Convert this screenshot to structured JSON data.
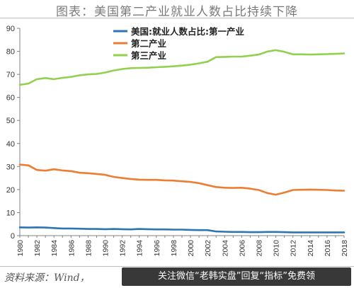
{
  "title": "图表：美国第二产业就业人数占比持续下降",
  "source": "资料来源：Wind，",
  "watermark": "关注微信“老韩实盘”回复“指标”免费领",
  "chart_data": {
    "type": "line",
    "title": "",
    "xlabel": "",
    "ylabel": "",
    "ylim": [
      0,
      90
    ],
    "yticks": [
      0,
      10,
      20,
      30,
      40,
      50,
      60,
      70,
      80,
      90
    ],
    "xlim": [
      1980,
      2018
    ],
    "xticks": [
      1980,
      1982,
      1984,
      1986,
      1988,
      1990,
      1992,
      1994,
      1996,
      1998,
      2000,
      2002,
      2004,
      2006,
      2008,
      2010,
      2012,
      2014,
      2016,
      2018
    ],
    "grid": false,
    "legend": "top-center",
    "x": [
      1980,
      1981,
      1982,
      1983,
      1984,
      1985,
      1986,
      1987,
      1988,
      1989,
      1990,
      1991,
      1992,
      1993,
      1994,
      1995,
      1996,
      1997,
      1998,
      1999,
      2000,
      2001,
      2002,
      2003,
      2004,
      2005,
      2006,
      2007,
      2008,
      2009,
      2010,
      2011,
      2012,
      2013,
      2014,
      2015,
      2016,
      2017,
      2018
    ],
    "series": [
      {
        "name": "美国:就业人数占比:第一产业",
        "color": "#2e75b6",
        "values": [
          3.6,
          3.5,
          3.6,
          3.5,
          3.3,
          3.1,
          3.1,
          3.0,
          2.9,
          2.9,
          2.8,
          2.9,
          2.8,
          2.7,
          2.9,
          2.8,
          2.7,
          2.7,
          2.6,
          2.6,
          2.5,
          2.4,
          2.4,
          1.8,
          1.7,
          1.6,
          1.6,
          1.5,
          1.5,
          1.6,
          1.6,
          1.5,
          1.4,
          1.4,
          1.4,
          1.4,
          1.4,
          1.4,
          1.4
        ]
      },
      {
        "name": "第二产业",
        "color": "#ed7d31",
        "values": [
          30.8,
          30.5,
          28.5,
          28.2,
          28.8,
          28.3,
          28.0,
          27.3,
          27.1,
          26.8,
          26.4,
          25.5,
          25.0,
          24.6,
          24.3,
          24.2,
          24.2,
          24.0,
          23.9,
          23.6,
          23.3,
          22.8,
          21.9,
          21.1,
          20.8,
          20.7,
          20.8,
          20.4,
          19.8,
          18.5,
          17.8,
          18.7,
          19.8,
          19.9,
          20.0,
          19.9,
          19.8,
          19.6,
          19.5
        ]
      },
      {
        "name": "第三产业",
        "color": "#92d050",
        "values": [
          65.5,
          66.0,
          67.9,
          68.4,
          67.9,
          68.5,
          68.9,
          69.6,
          70.0,
          70.2,
          70.8,
          71.7,
          72.3,
          72.7,
          72.8,
          72.9,
          73.1,
          73.3,
          73.5,
          73.8,
          74.2,
          74.8,
          75.5,
          77.5,
          77.6,
          77.7,
          77.7,
          78.1,
          78.6,
          79.9,
          80.5,
          79.8,
          78.7,
          78.7,
          78.6,
          78.7,
          78.8,
          78.9,
          79.1
        ]
      }
    ]
  }
}
